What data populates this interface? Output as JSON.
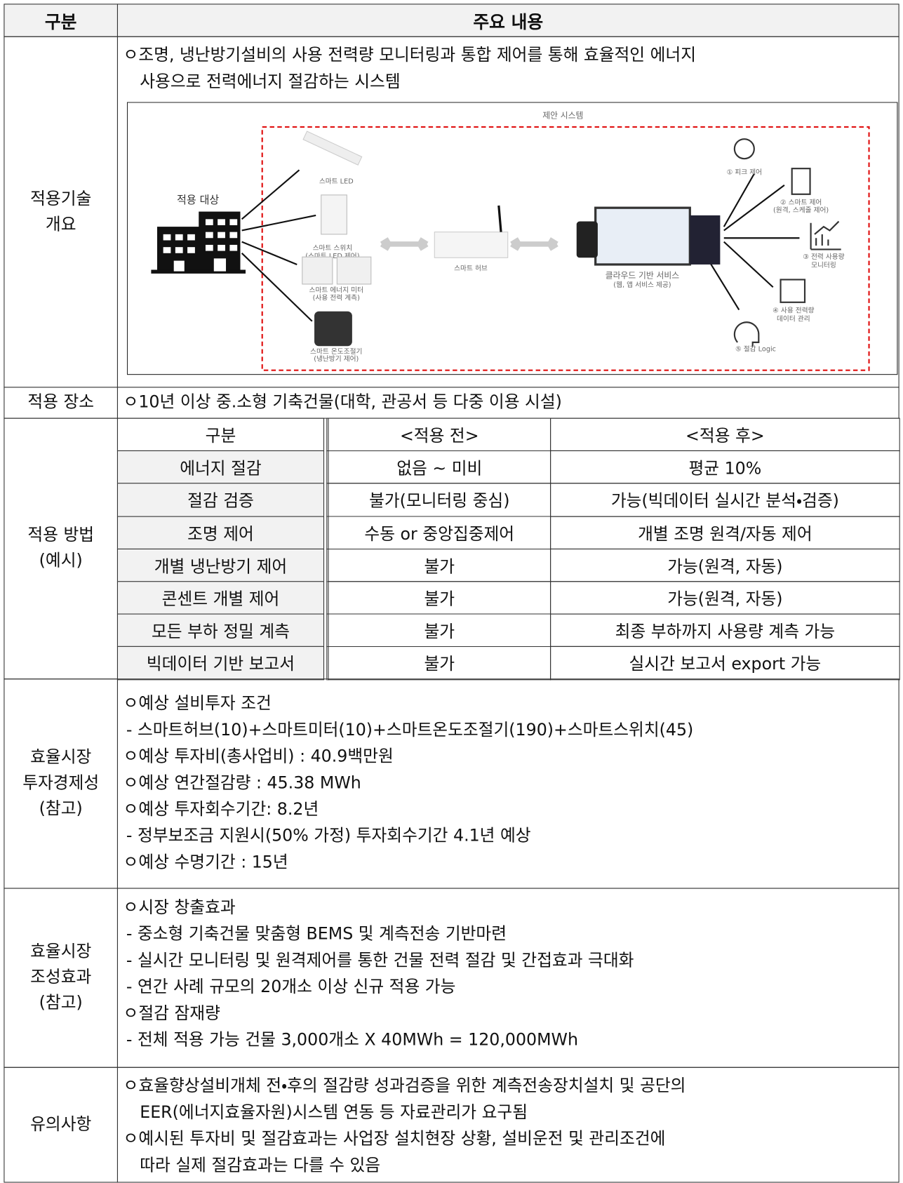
{
  "header": {
    "category": "구분",
    "content": "주요 내용"
  },
  "overview": {
    "label": [
      "적용기술",
      "개요"
    ],
    "lines": [
      "ㅇ조명, 냉난방기설비의 사용 전력량 모니터링과 통합 제어를 통해 효율적인 에너지",
      "사용으로 전력에너지 절감하는 시스템"
    ],
    "diagram": {
      "title": "제안 시스템",
      "target": "적용 대상",
      "led": "스마트 LED",
      "switch": "스마트 스위치",
      "switch_sub": "(스마트 LED 제어)",
      "meter": "스마트 에너지 미터",
      "meter_sub": "(사용 전력 계측)",
      "thermostat": "스마트 온도조절기",
      "thermostat_sub": "(냉난방기 제어)",
      "hub": "스마트 허브",
      "cloud": "클라우드 기반 서비스",
      "cloud_sub": "(웹, 앱 서비스 제공)",
      "f1": "① 피크 제어",
      "f2": "② 스마트 제어",
      "f2_sub": "(원격, 스케줄 제어)",
      "f3": "③ 전력 사용량",
      "f3_sub": "모니터링",
      "f4": "④ 사용 전력량",
      "f4_sub": "데이터 관리",
      "f5": "⑤ 절감 Logic"
    }
  },
  "location": {
    "label": "적용 장소",
    "text": "ㅇ10년 이상 중.소형 기축건물(대학, 관공서 등 다중 이용 시설)"
  },
  "method": {
    "label": [
      "적용 방법",
      "(예시)"
    ],
    "columns": [
      "구분",
      "<적용 전>",
      "<적용 후>"
    ],
    "rows": [
      [
        "에너지 절감",
        "없음 ~ 미비",
        "평균 10%"
      ],
      [
        "절감 검증",
        "불가(모니터링 중심)",
        "가능(빅데이터 실시간 분석・검증)"
      ],
      [
        "조명 제어",
        "수동 or 중앙집중제어",
        "개별 조명 원격/자동 제어"
      ],
      [
        "개별 냉난방기 제어",
        "불가",
        "가능(원격, 자동)"
      ],
      [
        "콘센트 개별 제어",
        "불가",
        "가능(원격, 자동)"
      ],
      [
        "모든 부하 정밀 계측",
        "불가",
        "최종 부하까지 사용량 계측 가능"
      ],
      [
        "빅데이터 기반 보고서",
        "불가",
        "실시간 보고서 export 가능"
      ]
    ]
  },
  "economics": {
    "label": [
      "효율시장",
      "투자경제성",
      "(참고)"
    ],
    "lines": [
      "ㅇ예상 설비투자 조건",
      "- 스마트허브(10)+스마트미터(10)+스마트온도조절기(190)+스마트스위치(45)",
      "ㅇ예상 투자비(총사업비) : 40.9백만원",
      "ㅇ예상 연간절감량 : 45.38 MWh",
      "ㅇ예상 투자회수기간: 8.2년",
      "- 정부보조금 지원시(50% 가정) 투자회수기간 4.1년 예상",
      "ㅇ예상 수명기간 : 15년"
    ]
  },
  "effects": {
    "label": [
      "효율시장",
      "조성효과",
      "(참고)"
    ],
    "lines": [
      "ㅇ시장 창출효과",
      "- 중소형 기축건물 맞춤형 BEMS 및 계측전송 기반마련",
      "- 실시간 모니터링 및 원격제어를 통한 건물 전력 절감 및 간접효과 극대화",
      "- 연간 사례 규모의 20개소 이상 신규 적용 가능",
      "ㅇ절감 잠재량",
      "- 전체 적용 가능 건물 3,000개소 X 40MWh = 120,000MWh"
    ]
  },
  "notes": {
    "label": "유의사항",
    "lines": [
      "ㅇ효율향상설비개체 전・후의 절감량 성과검증을 위한 계측전송장치설치 및 공단의",
      "EER(에너지효율자원)시스템 연동 등 자료관리가 요구됨",
      "ㅇ예시된 투자비 및 절감효과는 사업장 설치현장 상황, 설비운전 및 관리조건에",
      "따라 실제 절감효과는 다를 수 있음"
    ]
  }
}
